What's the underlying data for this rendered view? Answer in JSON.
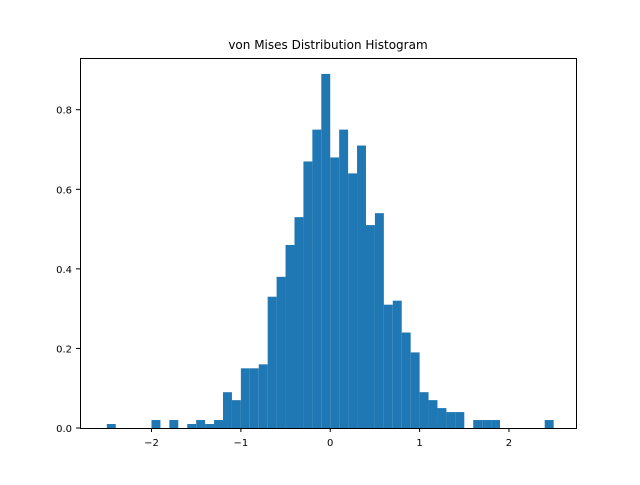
{
  "chart_data": {
    "type": "bar",
    "title": "von Mises Distribution Histogram",
    "xlabel": "",
    "ylabel": "",
    "xlim": [
      -2.8,
      2.75
    ],
    "ylim": [
      0,
      0.93
    ],
    "grid": false,
    "color": "#1f77b4",
    "bin_width": 0.0999,
    "bins": [
      {
        "x0": -2.5,
        "x1": -2.4,
        "value": 0.01
      },
      {
        "x0": -2.0,
        "x1": -1.9,
        "value": 0.02
      },
      {
        "x0": -1.8,
        "x1": -1.7,
        "value": 0.02
      },
      {
        "x0": -1.6,
        "x1": -1.5,
        "value": 0.01
      },
      {
        "x0": -1.5,
        "x1": -1.4,
        "value": 0.02
      },
      {
        "x0": -1.4,
        "x1": -1.3,
        "value": 0.01
      },
      {
        "x0": -1.3,
        "x1": -1.2,
        "value": 0.02
      },
      {
        "x0": -1.2,
        "x1": -1.1,
        "value": 0.09
      },
      {
        "x0": -1.1,
        "x1": -1.0,
        "value": 0.07
      },
      {
        "x0": -1.0,
        "x1": -0.9,
        "value": 0.15
      },
      {
        "x0": -0.9,
        "x1": -0.8,
        "value": 0.15
      },
      {
        "x0": -0.8,
        "x1": -0.7,
        "value": 0.16
      },
      {
        "x0": -0.7,
        "x1": -0.6,
        "value": 0.33
      },
      {
        "x0": -0.6,
        "x1": -0.5,
        "value": 0.38
      },
      {
        "x0": -0.5,
        "x1": -0.4,
        "value": 0.46
      },
      {
        "x0": -0.4,
        "x1": -0.3,
        "value": 0.53
      },
      {
        "x0": -0.3,
        "x1": -0.2,
        "value": 0.67
      },
      {
        "x0": -0.2,
        "x1": -0.1,
        "value": 0.75
      },
      {
        "x0": -0.1,
        "x1": 0.0,
        "value": 0.89
      },
      {
        "x0": 0.0,
        "x1": 0.1,
        "value": 0.68
      },
      {
        "x0": 0.1,
        "x1": 0.2,
        "value": 0.75
      },
      {
        "x0": 0.2,
        "x1": 0.3,
        "value": 0.64
      },
      {
        "x0": 0.3,
        "x1": 0.4,
        "value": 0.71
      },
      {
        "x0": 0.4,
        "x1": 0.5,
        "value": 0.51
      },
      {
        "x0": 0.5,
        "x1": 0.6,
        "value": 0.54
      },
      {
        "x0": 0.6,
        "x1": 0.7,
        "value": 0.31
      },
      {
        "x0": 0.7,
        "x1": 0.8,
        "value": 0.32
      },
      {
        "x0": 0.8,
        "x1": 0.9,
        "value": 0.24
      },
      {
        "x0": 0.9,
        "x1": 1.0,
        "value": 0.19
      },
      {
        "x0": 1.0,
        "x1": 1.1,
        "value": 0.09
      },
      {
        "x0": 1.1,
        "x1": 1.2,
        "value": 0.07
      },
      {
        "x0": 1.2,
        "x1": 1.3,
        "value": 0.05
      },
      {
        "x0": 1.3,
        "x1": 1.4,
        "value": 0.04
      },
      {
        "x0": 1.4,
        "x1": 1.5,
        "value": 0.04
      },
      {
        "x0": 1.6,
        "x1": 1.7,
        "value": 0.02
      },
      {
        "x0": 1.7,
        "x1": 1.8,
        "value": 0.02
      },
      {
        "x0": 1.8,
        "x1": 1.9,
        "value": 0.02
      },
      {
        "x0": 2.4,
        "x1": 2.5,
        "value": 0.02
      }
    ],
    "x_ticks": [
      {
        "value": -2,
        "label": "−2"
      },
      {
        "value": -1,
        "label": "−1"
      },
      {
        "value": 0,
        "label": "0"
      },
      {
        "value": 1,
        "label": "1"
      },
      {
        "value": 2,
        "label": "2"
      }
    ],
    "y_ticks": [
      {
        "value": 0.0,
        "label": "0.0"
      },
      {
        "value": 0.2,
        "label": "0.2"
      },
      {
        "value": 0.4,
        "label": "0.4"
      },
      {
        "value": 0.6,
        "label": "0.6"
      },
      {
        "value": 0.8,
        "label": "0.8"
      }
    ]
  }
}
